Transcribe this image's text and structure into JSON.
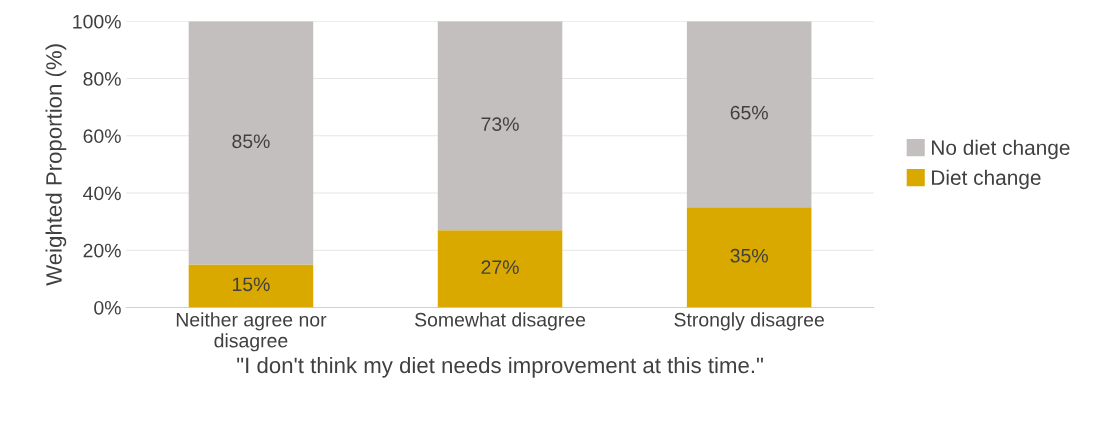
{
  "chart_data": {
    "type": "bar",
    "stacked": true,
    "xlabel": "\"I don't think my diet needs improvement at this time.\"",
    "ylabel": "Weighted Proportion (%)",
    "categories": [
      "Neither agree nor\ndisagree",
      "Somewhat disagree",
      "Strongly disagree"
    ],
    "series": [
      {
        "name": "Diet change",
        "color": "#d9a900",
        "values": [
          15,
          27,
          35
        ],
        "value_labels": [
          "15%",
          "27%",
          "35%"
        ]
      },
      {
        "name": "No diet change",
        "color": "#c3bfbf",
        "values": [
          85,
          73,
          65
        ],
        "value_labels": [
          "85%",
          "73%",
          "65%"
        ]
      }
    ],
    "ylim": [
      0,
      100
    ],
    "yticks": [
      {
        "value": 0,
        "label": "0%"
      },
      {
        "value": 20,
        "label": "20%"
      },
      {
        "value": 40,
        "label": "40%"
      },
      {
        "value": 60,
        "label": "60%"
      },
      {
        "value": 80,
        "label": "80%"
      },
      {
        "value": 100,
        "label": "100%"
      }
    ],
    "grid": "y",
    "legend": "right"
  }
}
